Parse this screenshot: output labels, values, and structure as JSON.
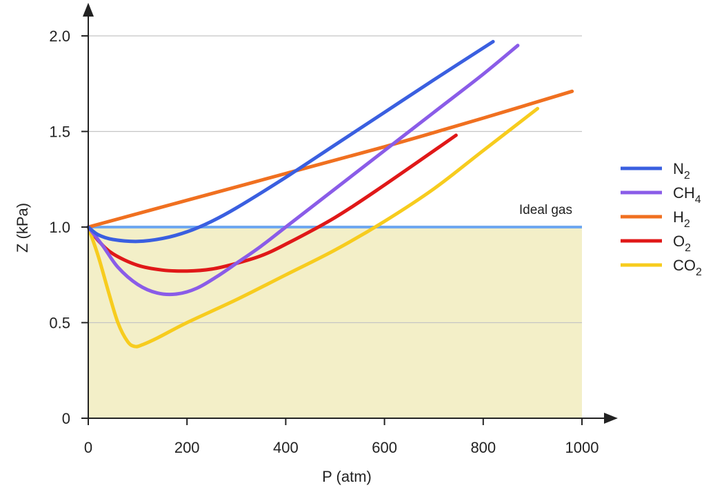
{
  "chart_data": {
    "type": "line",
    "title": "",
    "xlabel": "P (atm)",
    "ylabel": "Z (kPa)",
    "xlim": [
      0,
      1000
    ],
    "ylim": [
      0,
      2.0
    ],
    "xticks": [
      0,
      200,
      400,
      600,
      800,
      1000
    ],
    "xtick_labels": [
      "0",
      "200",
      "400",
      "600",
      "800",
      "1000"
    ],
    "yticks": [
      0,
      0.5,
      1.0,
      1.5,
      2.0
    ],
    "ytick_labels": [
      "0",
      "0.5",
      "1.0",
      "1.5",
      "2.0"
    ],
    "grid": "horizontal",
    "legend_position": "right",
    "shaded_region": {
      "y_from": 0,
      "y_to": 1.0,
      "color": "#f3efc8"
    },
    "reference_line": {
      "y": 1.0,
      "label": "Ideal gas",
      "color": "#6fa8f0"
    },
    "series": [
      {
        "name": "N",
        "subscript": "2",
        "color": "#3a5fe0",
        "x": [
          0,
          20,
          50,
          100,
          150,
          200,
          250,
          300,
          400,
          500,
          600,
          700,
          820
        ],
        "y": [
          1.0,
          0.96,
          0.935,
          0.925,
          0.94,
          0.975,
          1.03,
          1.1,
          1.26,
          1.43,
          1.6,
          1.77,
          1.97
        ]
      },
      {
        "name": "CH",
        "subscript": "4",
        "color": "#8a5ce8",
        "x": [
          0,
          30,
          60,
          100,
          140,
          180,
          220,
          260,
          300,
          350,
          400,
          500,
          600,
          700,
          800,
          870
        ],
        "y": [
          1.0,
          0.9,
          0.79,
          0.7,
          0.655,
          0.65,
          0.68,
          0.74,
          0.81,
          0.9,
          1.0,
          1.2,
          1.4,
          1.6,
          1.8,
          1.95
        ]
      },
      {
        "name": "H",
        "subscript": "2",
        "color": "#f07020",
        "x": [
          0,
          200,
          400,
          600,
          800,
          980
        ],
        "y": [
          1.0,
          1.14,
          1.28,
          1.42,
          1.57,
          1.71
        ]
      },
      {
        "name": "O",
        "subscript": "2",
        "color": "#e01818",
        "x": [
          0,
          20,
          50,
          100,
          150,
          200,
          250,
          300,
          350,
          400,
          500,
          600,
          745
        ],
        "y": [
          1.0,
          0.93,
          0.86,
          0.8,
          0.775,
          0.77,
          0.78,
          0.81,
          0.85,
          0.91,
          1.05,
          1.22,
          1.48
        ]
      },
      {
        "name": "CO",
        "subscript": "2",
        "color": "#f7cc1e",
        "x": [
          0,
          20,
          40,
          60,
          80,
          95,
          110,
          140,
          200,
          300,
          400,
          500,
          600,
          700,
          800,
          910
        ],
        "y": [
          1.0,
          0.85,
          0.67,
          0.5,
          0.4,
          0.375,
          0.385,
          0.42,
          0.5,
          0.62,
          0.75,
          0.88,
          1.03,
          1.2,
          1.4,
          1.62
        ]
      }
    ]
  }
}
